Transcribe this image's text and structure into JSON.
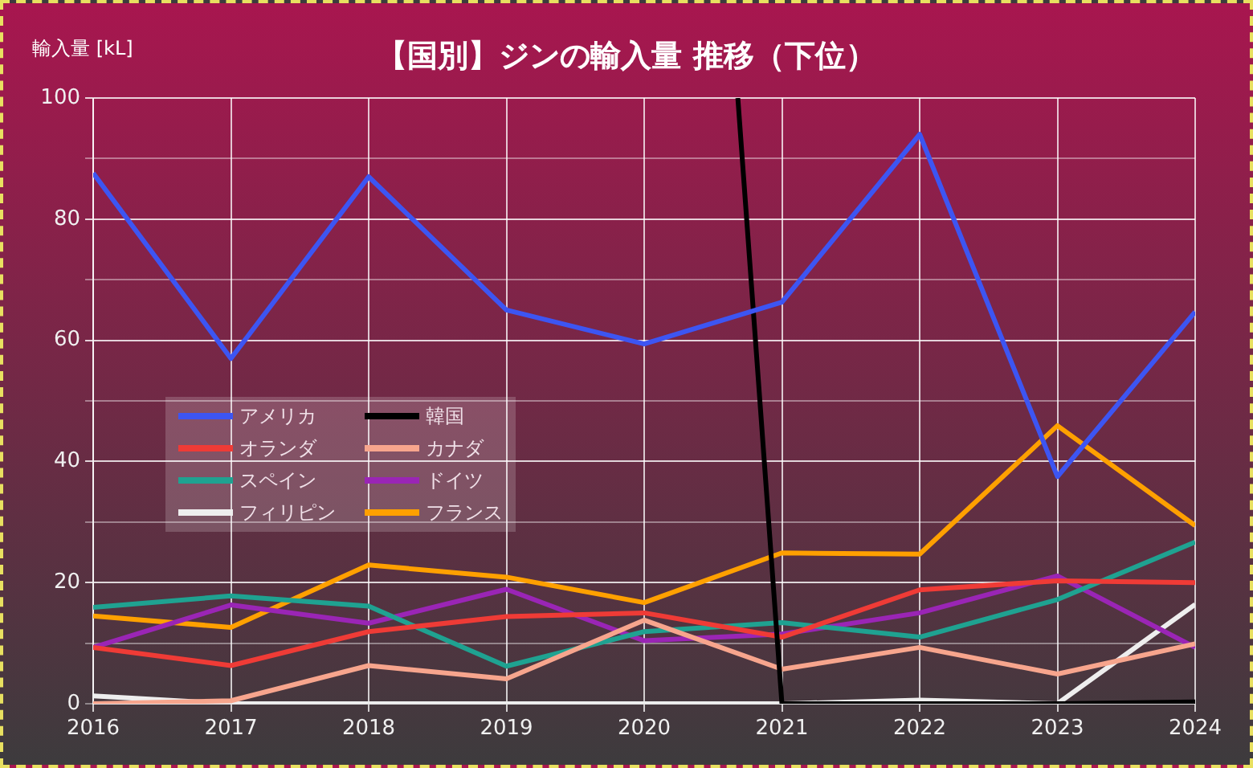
{
  "chart_data": {
    "type": "line",
    "title": "【国別】ジンの輸入量 推移（下位）",
    "ylabel": "輸入量 [kL]",
    "x": [
      2016,
      2017,
      2018,
      2019,
      2020,
      2021,
      2022,
      2023,
      2024
    ],
    "xlim": [
      2016,
      2024
    ],
    "xticks": [
      2016,
      2017,
      2018,
      2019,
      2020,
      2021,
      2022,
      2023,
      2024
    ],
    "ylim": [
      0,
      100
    ],
    "yticks": [
      0,
      {
        "value": 10,
        "label": null
      },
      20,
      {
        "value": 30,
        "label": null
      },
      40,
      {
        "value": 50,
        "label": null
      },
      60,
      {
        "value": 70,
        "label": null
      },
      80,
      {
        "value": 90,
        "label": null
      },
      100
    ],
    "grid": true,
    "legend": "left",
    "marker": "none",
    "line_style": "solid",
    "series": [
      {
        "name": "アメリカ",
        "color": "#3d55f2",
        "values": [
          87.6,
          57,
          87,
          65,
          59.4,
          66.3,
          94,
          37.5,
          64.7
        ]
      },
      {
        "name": "韓国",
        "color": "#000000",
        "x": [
          2020.68,
          2021,
          2022,
          2023,
          2024
        ],
        "values": [
          100,
          0,
          0,
          0,
          0.3
        ]
      },
      {
        "name": "オランダ",
        "color": "#ef3b36",
        "values": [
          9.3,
          6.3,
          11.9,
          14.4,
          15,
          11,
          18.8,
          20.3,
          20
        ]
      },
      {
        "name": "カナダ",
        "color": "#f7a58d",
        "values": [
          0,
          0.5,
          6.3,
          4.1,
          13.8,
          5.7,
          9.3,
          4.9,
          9.9
        ]
      },
      {
        "name": "スペイン",
        "color": "#1fa291",
        "values": [
          15.9,
          17.8,
          16.1,
          6.2,
          11.9,
          13.4,
          11,
          17.2,
          26.7
        ]
      },
      {
        "name": "ドイツ",
        "color": "#9a25b5",
        "values": [
          9.3,
          16.3,
          13.3,
          18.9,
          10.4,
          11.5,
          15,
          21.1,
          9.3
        ]
      },
      {
        "name": "フィリピン",
        "color": "#eeeeee",
        "values": [
          1.3,
          0,
          0,
          0,
          0,
          0,
          0.6,
          0,
          16.4
        ]
      },
      {
        "name": "フランス",
        "color": "#ffa000",
        "values": [
          14.5,
          12.6,
          22.9,
          20.9,
          16.7,
          24.9,
          24.7,
          45.9,
          29.4
        ]
      }
    ]
  }
}
